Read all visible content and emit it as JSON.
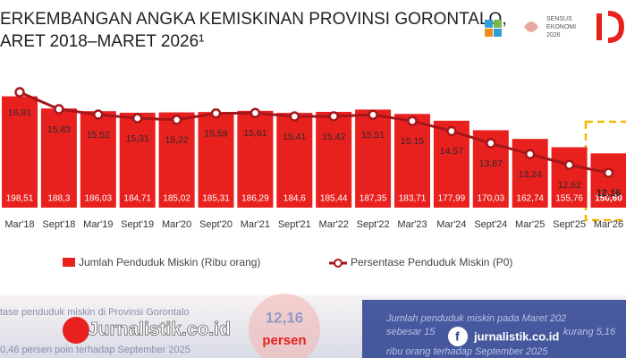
{
  "header": {
    "title_lines": [
      "ERKEMBANGAN ANGKA KEMISKINAN PROVINSI GORONTALO,",
      "ARET 2018–MARET 2026¹"
    ],
    "logo_text": [
      "SENSUS",
      "EKONOMI",
      "2026"
    ]
  },
  "chart_data": {
    "type": "bar",
    "categories": [
      "Mar'18",
      "Sept'18",
      "Mar'19",
      "Sept'19",
      "Mar'20",
      "Sept'20",
      "Mar'21",
      "Sept'21",
      "Mar'22",
      "Sept'22",
      "Mar'23",
      "Mar'24",
      "Sept'24",
      "Mar'25",
      "Sept'25",
      "Mar'26"
    ],
    "series": [
      {
        "name": "Jumlah Penduduk Miskin (Ribu orang)",
        "color": "#e8211f",
        "values": [
          198.51,
          188.3,
          186.03,
          184.71,
          185.02,
          185.31,
          186.29,
          184.6,
          185.44,
          187.35,
          183.71,
          177.99,
          170.03,
          162.74,
          155.76,
          150.6
        ],
        "value_labels": [
          "198,51",
          "188,3",
          "186,03",
          "184,71",
          "185,02",
          "185,31",
          "186,29",
          "184,6",
          "185,44",
          "187,35",
          "183,71",
          "177,99",
          "170,03",
          "162,74",
          "155,76",
          "150,60"
        ]
      },
      {
        "name": "Persentase Penduduk Miskin (P0)",
        "color": "#a5161a",
        "type": "line",
        "axis": "y2",
        "values": [
          16.81,
          15.83,
          15.52,
          15.31,
          15.22,
          15.59,
          15.61,
          15.41,
          15.42,
          15.51,
          15.15,
          14.57,
          13.87,
          13.24,
          12.62,
          12.16
        ],
        "value_labels": [
          "16,81",
          "15,83",
          "15,52",
          "15,31",
          "15,22",
          "15,59",
          "15,61",
          "15,41",
          "15,42",
          "15,51",
          "15,15",
          "14,57",
          "13,87",
          "13,24",
          "12,62",
          "12,16"
        ]
      }
    ],
    "ylim": [
      105,
      220
    ],
    "y2lim": [
      10,
      18
    ],
    "legend": "bottom"
  },
  "footer": {
    "left_lines": [
      "tase penduduk miskin di Provinsi Gorontalo",
      "0,46 persen poin terhadap September 2025"
    ],
    "center": [
      "12,16",
      "persen"
    ],
    "right_lines": [
      "Jumlah penduduk miskin pada Maret 202",
      "sebesar 15",
      "kurang 5,16",
      "ribu orang terhadap September 2025"
    ],
    "watermark_left": "Jurnalistik.co.id",
    "watermark_right": "jurnalistik.co.id"
  }
}
